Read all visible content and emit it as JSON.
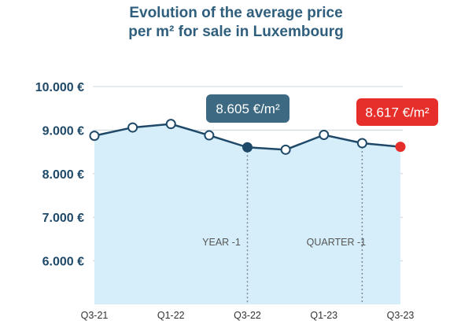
{
  "colors": {
    "line": "#1f4968",
    "area": "#d6eefa",
    "grid": "#c8d4dc",
    "highlight_blue": "#1f4968",
    "highlight_red": "#e62f2a",
    "callout_blue": "#3d6a82",
    "callout_red": "#e62f2a"
  },
  "chart_data": {
    "type": "area",
    "title": [
      "Evolution of the average price",
      "per m² for sale in Luxembourg"
    ],
    "xlabel": "",
    "ylabel": "",
    "x": [
      "Q3-21",
      "Q4-21",
      "Q1-22",
      "Q2-22",
      "Q3-22",
      "Q4-22",
      "Q1-23",
      "Q2-23",
      "Q3-23"
    ],
    "x_tick_labels": [
      "Q3-21",
      "Q1-22",
      "Q3-22",
      "Q1-23",
      "Q3-23"
    ],
    "values": [
      8870,
      9060,
      9140,
      8880,
      8605,
      8550,
      8890,
      8700,
      8617
    ],
    "ylim": [
      5000,
      10000
    ],
    "y_ticks": [
      6000,
      7000,
      8000,
      9000,
      10000
    ],
    "y_tick_labels": [
      "6.000 €",
      "7.000 €",
      "8.000 €",
      "9.000 €",
      "10.000 €"
    ],
    "grid": true,
    "highlights": [
      {
        "x": "Q3-22",
        "value": 8605,
        "label": "8.605 €/m²",
        "color": "blue"
      },
      {
        "x": "Q3-23",
        "value": 8617,
        "label": "8.617 €/m²",
        "color": "red"
      }
    ],
    "annotations": [
      {
        "x": "Q3-22",
        "text": "YEAR -1"
      },
      {
        "x": "Q2-23",
        "text": "QUARTER -1"
      }
    ]
  }
}
